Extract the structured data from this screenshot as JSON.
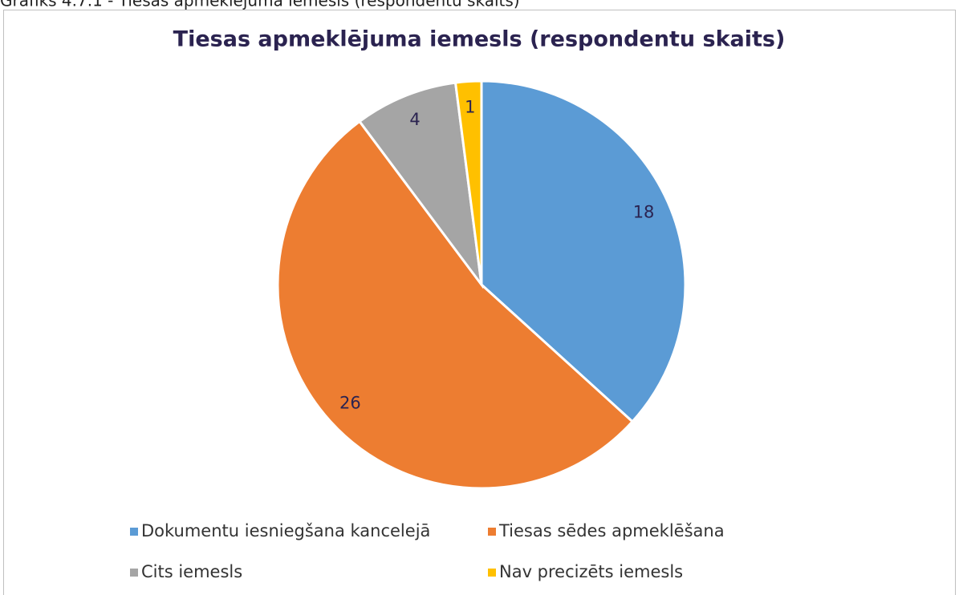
{
  "caption": "Grafiks 4.7.1 - Tiesas apmeklējuma iemesls (respondentu skaits)",
  "chart_data": {
    "type": "pie",
    "title": "Tiesas apmeklējuma iemesls (respondentu skaits)",
    "categories": [
      "Dokumentu iesniegšana kancelejā",
      "Tiesas sēdes apmeklēšana",
      "Cits iemesls",
      "Nav precizēts iemesls"
    ],
    "values": [
      18,
      26,
      4,
      1
    ],
    "colors": [
      "#5b9bd5",
      "#ed7d31",
      "#a5a5a5",
      "#ffc000"
    ],
    "legend": "bottom"
  }
}
